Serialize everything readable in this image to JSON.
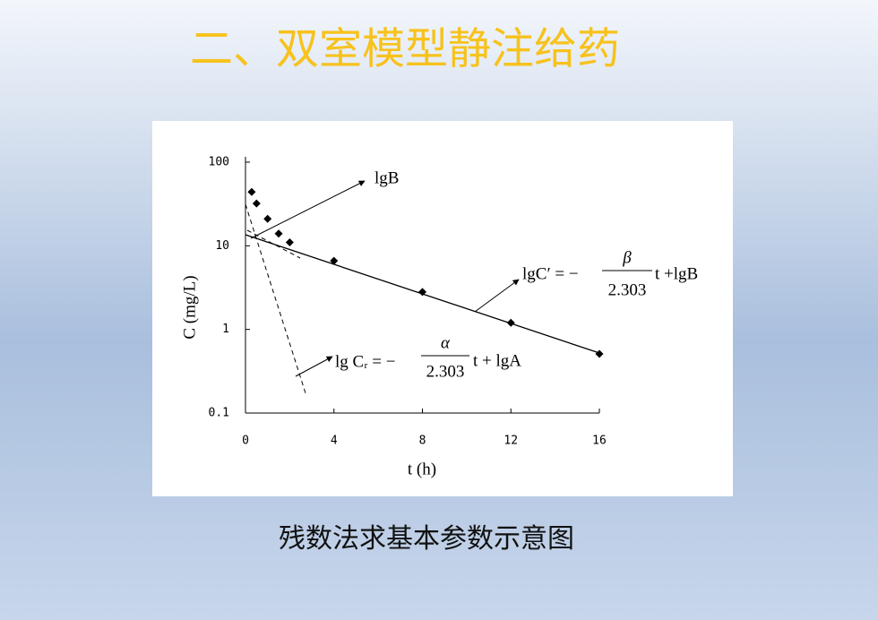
{
  "title": "二、双室模型静注给药",
  "caption": "残数法求基本参数示意图",
  "chart_data": {
    "type": "scatter",
    "x_label": "t (h)",
    "y_label": "C (mg/L)",
    "x": [
      0.28,
      0.5,
      1,
      1.5,
      2,
      4,
      8,
      12,
      16
    ],
    "series": [
      {
        "color": "#000000",
        "values": [
          44,
          32,
          21,
          14,
          11,
          6.6,
          2.8,
          1.2,
          0.51
        ]
      }
    ],
    "xlim": [
      0,
      16
    ],
    "xticks": [
      0,
      4,
      8,
      12,
      16
    ],
    "ylim": [
      0.1,
      100
    ],
    "yticks": [
      0.1,
      1,
      10,
      100
    ],
    "y_scale": "log",
    "annotations": [
      {
        "text": "lgB"
      },
      {
        "lhs": "lgC′ = −",
        "numerator": "β",
        "denominator": "2.303",
        "rhs": "t +lgB"
      },
      {
        "lhs": "lg Cᵣ = −",
        "numerator": "α",
        "denominator": "2.303",
        "rhs": "t + lgA"
      }
    ]
  }
}
